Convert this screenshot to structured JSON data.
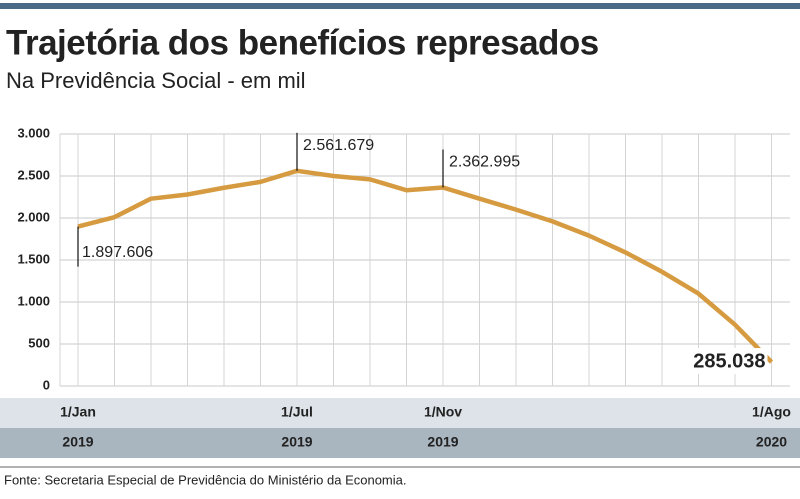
{
  "chart_data": {
    "type": "line",
    "title": "Trajetória dos benefícios represados",
    "subtitle": "Na Previdência Social - em mil",
    "source": "Fonte: Secretaria Especial de Previdência do Ministério da Economia.",
    "categories": [
      "1/Jan",
      null,
      null,
      null,
      null,
      null,
      "1/Jul",
      null,
      null,
      null,
      "1/Nov",
      null,
      null,
      null,
      null,
      null,
      null,
      null,
      null,
      "1/Ago"
    ],
    "years": [
      "2019",
      null,
      null,
      null,
      null,
      null,
      "2019",
      null,
      null,
      null,
      "2019",
      null,
      null,
      null,
      null,
      null,
      null,
      null,
      null,
      "2020"
    ],
    "series": [
      {
        "name": null,
        "color": "#d69b40",
        "values": [
          1897.606,
          2010,
          2230,
          2280,
          2360,
          2430,
          2561.679,
          2500,
          2460,
          2330,
          2362.995,
          2230,
          2100,
          1960,
          1790,
          1590,
          1360,
          1100,
          730,
          285.038
        ],
        "value_labels": [
          "1.897.606",
          null,
          null,
          null,
          null,
          null,
          "2.561.679",
          null,
          null,
          null,
          "2.362.995",
          null,
          null,
          null,
          null,
          null,
          null,
          null,
          null,
          "285.038"
        ]
      }
    ],
    "ylim": [
      0,
      3000
    ],
    "yticks": [
      0,
      500,
      {
        "value": 1000,
        "label": "1.000"
      },
      {
        "value": 1500,
        "label": "1.500"
      },
      {
        "value": 2000,
        "label": "2.000"
      },
      {
        "value": 2500,
        "label": "2.500"
      },
      {
        "value": 3000,
        "label": "3.000"
      }
    ],
    "grid": true
  }
}
